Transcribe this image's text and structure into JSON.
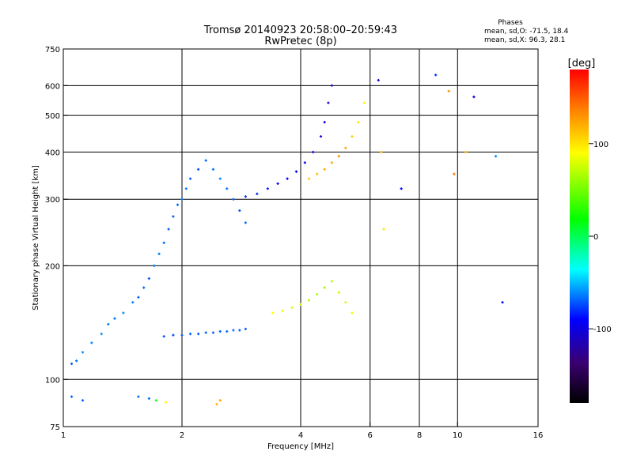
{
  "chart_data": {
    "type": "scatter",
    "title": "Tromsø 20140923 20:58:00–20:59:43",
    "subtitle": "RwPretec (8p)",
    "xlabel": "Frequency [MHz]",
    "ylabel": "Stationary phase Virtual Height [km]",
    "x_scale": "log",
    "y_scale": "log",
    "xlim": [
      1,
      16
    ],
    "ylim": [
      75,
      750
    ],
    "x_ticks": [
      1,
      2,
      4,
      6,
      8,
      10,
      16
    ],
    "x_tick_labels": [
      "1",
      "2",
      "4",
      "6",
      "8",
      "10",
      "16"
    ],
    "y_ticks": [
      75,
      100,
      200,
      300,
      400,
      500,
      600,
      750
    ],
    "y_tick_labels": [
      "75",
      "100",
      "200",
      "300",
      "400",
      "500",
      "600",
      "750"
    ],
    "x_grid": [
      2,
      4,
      6,
      8,
      10
    ],
    "y_grid": [
      100,
      200,
      300,
      400,
      500,
      600
    ],
    "phases_box": {
      "title": "Phases",
      "line_o": "mean, sd,O:  -71.5, 18.4",
      "line_x": "mean, sd,X:  96.3, 28.1"
    },
    "colorbar": {
      "label": "[deg]",
      "range": [
        -180,
        180
      ],
      "ticks": [
        -100,
        0,
        100
      ],
      "tick_labels": [
        "-100",
        "0",
        "100"
      ]
    },
    "series": [
      {
        "trace": "low-region blue-cyan cloud",
        "x": [
          1.05,
          1.08,
          1.12,
          1.18,
          1.25,
          1.3,
          1.35,
          1.42,
          1.5,
          1.55,
          1.6,
          1.65,
          1.7,
          1.75,
          1.8,
          1.85,
          1.9,
          1.95,
          2.0,
          2.05,
          2.1,
          2.2,
          2.3,
          2.4,
          2.5,
          2.6,
          2.7,
          2.8,
          2.9
        ],
        "y": [
          110,
          112,
          118,
          125,
          132,
          140,
          145,
          150,
          160,
          165,
          175,
          185,
          200,
          215,
          230,
          250,
          270,
          290,
          300,
          320,
          340,
          360,
          380,
          360,
          340,
          320,
          300,
          280,
          260
        ],
        "phase": [
          -70,
          -65,
          -60,
          -62,
          -58,
          -64,
          -66,
          -60,
          -62,
          -70,
          -68,
          -72,
          -65,
          -63,
          -66,
          -70,
          -72,
          -68,
          -66,
          -64,
          -70,
          -72,
          -68,
          -65,
          -62,
          -66,
          -70,
          -72,
          -68
        ]
      },
      {
        "trace": "E-layer trace near 130 km",
        "x": [
          1.8,
          1.9,
          2.0,
          2.1,
          2.2,
          2.3,
          2.4,
          2.5,
          2.6,
          2.7,
          2.8,
          2.9
        ],
        "y": [
          130,
          131,
          131,
          132,
          132,
          133,
          133,
          134,
          134,
          135,
          135,
          136
        ],
        "phase": [
          -75,
          -74,
          -72,
          -70,
          -70,
          -71,
          -72,
          -70,
          -68,
          -66,
          -68,
          -70
        ]
      },
      {
        "trace": "F-layer O trace",
        "x": [
          2.9,
          3.1,
          3.3,
          3.5,
          3.7,
          3.9,
          4.1,
          4.3,
          4.5,
          4.6,
          4.7,
          4.8
        ],
        "y": [
          305,
          310,
          320,
          330,
          340,
          355,
          375,
          400,
          440,
          480,
          540,
          600
        ],
        "phase": [
          -80,
          -82,
          -85,
          -88,
          -90,
          -92,
          -95,
          -97,
          -100,
          -102,
          -105,
          -108
        ]
      },
      {
        "trace": "F-layer X trace",
        "x": [
          4.2,
          4.4,
          4.6,
          4.8,
          5.0,
          5.2,
          5.4,
          5.6,
          5.8
        ],
        "y": [
          340,
          350,
          360,
          375,
          390,
          410,
          440,
          480,
          540
        ],
        "phase": [
          110,
          115,
          120,
          125,
          130,
          120,
          110,
          100,
          95
        ]
      },
      {
        "trace": "lower X traces 140-190 km",
        "x": [
          3.4,
          3.6,
          3.8,
          4.0,
          4.2,
          4.4,
          4.6,
          4.8,
          5.0,
          5.2,
          5.4
        ],
        "y": [
          150,
          152,
          155,
          158,
          162,
          168,
          175,
          182,
          170,
          160,
          150
        ],
        "phase": [
          90,
          85,
          80,
          75,
          70,
          65,
          60,
          70,
          75,
          80,
          85
        ]
      },
      {
        "trace": "scattered high-frequency points",
        "x": [
          6.3,
          6.4,
          6.5,
          7.2,
          8.8,
          9.5,
          9.8,
          10.5,
          11.0,
          12.5,
          13.0
        ],
        "y": [
          620,
          400,
          250,
          320,
          640,
          580,
          350,
          400,
          560,
          390,
          160
        ],
        "phase": [
          -110,
          120,
          100,
          -90,
          -80,
          130,
          140,
          120,
          -100,
          -60,
          -90
        ]
      },
      {
        "trace": "sporadic near 85-90 km",
        "x": [
          1.05,
          1.12,
          1.55,
          1.65,
          1.72,
          1.82,
          2.45,
          2.5
        ],
        "y": [
          90,
          88,
          90,
          89,
          88,
          87,
          86,
          88
        ],
        "phase": [
          -70,
          -72,
          -68,
          -66,
          20,
          90,
          120,
          125
        ]
      }
    ]
  }
}
